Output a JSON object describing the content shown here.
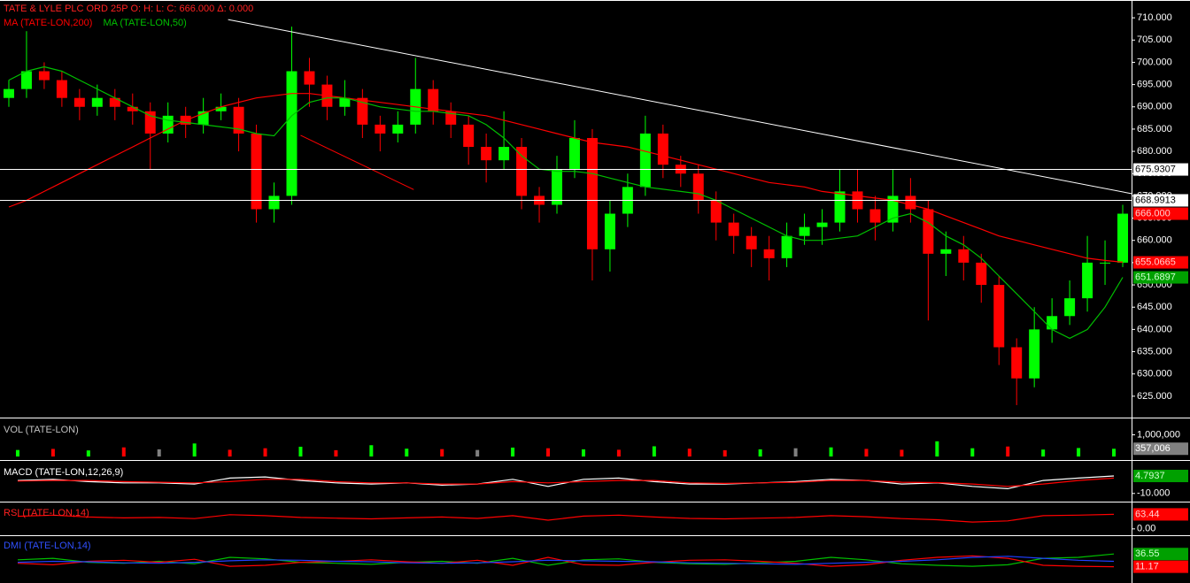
{
  "chart_data": [
    {
      "type": "candlestick",
      "title": "TATE & LYLE PLC ORD 25P  O:   H:   L:   C: 666.000  Δ: 0.000",
      "title_color": "#ff2020",
      "up_color": "#00ff00",
      "down_color": "#ff0000",
      "open": [
        692,
        694,
        698,
        696,
        692,
        690,
        692,
        690,
        689,
        684,
        688,
        686,
        689,
        690,
        684,
        667,
        670,
        698,
        695,
        690,
        692,
        686,
        684,
        686,
        694,
        689,
        686,
        681,
        678,
        681,
        670,
        668,
        676,
        683,
        658,
        666,
        672,
        684,
        677,
        675,
        669,
        664,
        661,
        658,
        656,
        661,
        663,
        664,
        671,
        667,
        664,
        670,
        667,
        657,
        658,
        655,
        650,
        636,
        629,
        640,
        643,
        647,
        655,
        655
      ],
      "high": [
        696,
        707,
        700,
        698,
        694,
        695,
        694,
        693,
        691,
        691,
        690,
        692,
        693,
        692,
        686,
        673,
        708,
        701,
        697,
        696,
        694,
        688,
        689,
        701,
        696,
        691,
        688,
        684,
        689,
        683,
        672,
        679,
        687,
        685,
        669,
        675,
        688,
        686,
        679,
        677,
        671,
        666,
        663,
        661,
        664,
        666,
        667,
        676,
        676,
        670,
        676,
        674,
        669,
        662,
        661,
        657,
        652,
        638,
        645,
        647,
        651,
        661,
        660,
        668
      ],
      "low": [
        690,
        692,
        694,
        690,
        687,
        688,
        687,
        686,
        676,
        682,
        683,
        684,
        687,
        680,
        664,
        664,
        668,
        690,
        687,
        688,
        683,
        680,
        682,
        684,
        686,
        683,
        677,
        673,
        676,
        667,
        664,
        666,
        674,
        651,
        653,
        663,
        670,
        674,
        672,
        666,
        660,
        657,
        654,
        651,
        654,
        659,
        659,
        662,
        664,
        660,
        662,
        664,
        642,
        652,
        651,
        646,
        632,
        623,
        627,
        637,
        641,
        644,
        650,
        654
      ],
      "close": [
        694,
        698,
        696,
        692,
        690,
        692,
        690,
        689,
        684,
        688,
        686,
        689,
        690,
        684,
        667,
        670,
        698,
        695,
        690,
        692,
        686,
        684,
        686,
        694,
        689,
        686,
        681,
        678,
        681,
        670,
        668,
        676,
        683,
        658,
        666,
        672,
        684,
        677,
        675,
        669,
        664,
        661,
        658,
        656,
        661,
        663,
        664,
        671,
        667,
        664,
        670,
        667,
        657,
        658,
        655,
        650,
        636,
        629,
        640,
        643,
        647,
        655,
        655,
        666
      ],
      "series": [
        {
          "name": "MA (TATE-LON,200)",
          "color": "#ff0000",
          "values": [
            667.5,
            669,
            671,
            673,
            675,
            677,
            679,
            681,
            683,
            685,
            687,
            688.5,
            690,
            691,
            692,
            692.5,
            693,
            693,
            692.5,
            692,
            691.5,
            691,
            690.5,
            690,
            689.5,
            689,
            688.5,
            688,
            687,
            686,
            685,
            684,
            683,
            682,
            681.5,
            681,
            680,
            679,
            678,
            677,
            676,
            675,
            674,
            673,
            672.5,
            672,
            671,
            670.5,
            670,
            669.5,
            669,
            668,
            667,
            665.5,
            664,
            662.5,
            661,
            660,
            659,
            658,
            657,
            656,
            655.5,
            655.1
          ]
        },
        {
          "name": "MA (TATE-LON,50)",
          "color": "#00c000",
          "values": [
            696,
            698,
            699,
            698,
            696,
            694,
            692,
            690,
            688,
            687,
            686.5,
            686,
            685.5,
            685,
            684,
            683.5,
            688,
            691,
            692,
            692,
            691,
            690,
            689.5,
            689,
            689,
            688.5,
            688,
            686,
            683,
            679,
            676,
            675.5,
            675.5,
            675,
            674,
            673,
            672,
            671.5,
            671,
            670.5,
            669,
            667,
            665,
            663,
            661,
            660,
            660,
            660.5,
            661,
            663,
            665,
            666,
            664,
            661,
            659,
            656,
            652,
            648,
            644,
            640,
            638,
            640,
            645,
            651.7
          ]
        }
      ],
      "ylim": [
        620.6,
        713.6
      ],
      "yticks": [
        {
          "value": 710,
          "label": "710.000"
        },
        {
          "value": 705,
          "label": "705.000"
        },
        {
          "value": 700,
          "label": "700.000"
        },
        {
          "value": 695,
          "label": "695.000"
        },
        {
          "value": 690,
          "label": "690.000"
        },
        {
          "value": 685,
          "label": "685.000"
        },
        {
          "value": 680,
          "label": "680.000"
        },
        {
          "value": 675,
          "label": "675.000"
        },
        {
          "value": 670,
          "label": "670.000"
        },
        {
          "value": 665,
          "label": "665.000"
        },
        {
          "value": 660,
          "label": "660.000"
        },
        {
          "value": 655,
          "label": "655.000"
        },
        {
          "value": 650,
          "label": "650.000"
        },
        {
          "value": 645,
          "label": "645.000"
        },
        {
          "value": 640,
          "label": "640.000"
        },
        {
          "value": 635,
          "label": "635.000"
        },
        {
          "value": 630,
          "label": "630.000"
        },
        {
          "value": 625,
          "label": "625.000"
        }
      ],
      "last_labels": [
        {
          "value": 675.9307,
          "label": "675.9307",
          "color": "#ffffff",
          "text_color": "#000000",
          "hline": true
        },
        {
          "value": 668.9913,
          "label": "668.9913",
          "color": "#ffffff",
          "text_color": "#000000",
          "hline": true
        },
        {
          "value": 666,
          "label": "666.000",
          "color": "#ff0000",
          "text_color": "#ffd0d0",
          "hline": false
        },
        {
          "value": 655.0665,
          "label": "655.0665",
          "color": "#ff0000",
          "text_color": "#ffd0d0",
          "hline": false
        },
        {
          "value": 651.6897,
          "label": "651.6897",
          "color": "#00a000",
          "text_color": "#d0ffd0",
          "hline": false
        }
      ],
      "trendlines": [
        {
          "color": "#ffffff",
          "x": [
            12.4,
            63.5
          ],
          "y": [
            709.6,
            670.5
          ]
        },
        {
          "color": "#ff0000",
          "x": [
            16.5,
            22.9
          ],
          "y": [
            683.6,
            671.4
          ]
        }
      ]
    },
    {
      "type": "bar",
      "title": "VOL (TATE-LON)",
      "title_color": "#c0c0c0",
      "values": [
        300000,
        350000,
        280000,
        420000,
        330000,
        600000,
        310000,
        380000,
        450000,
        290000,
        520000,
        360000,
        340000,
        300000,
        410000,
        380000,
        330000,
        310000,
        470000,
        360000,
        290000,
        330000,
        380000,
        420000,
        350000,
        310000,
        700000,
        380000,
        460000,
        320000,
        390000,
        357006
      ],
      "colors": [
        "#00ff00",
        "#ff0000",
        "#00ff00",
        "#ff0000",
        "#808080",
        "#00ff00",
        "#ff0000",
        "#ff0000",
        "#00ff00",
        "#ff0000",
        "#00ff00",
        "#00ff00",
        "#ff0000",
        "#808080",
        "#00ff00",
        "#ff0000",
        "#00ff00",
        "#ff0000",
        "#00ff00",
        "#ff0000",
        "#ff0000",
        "#00ff00",
        "#808080",
        "#00ff00",
        "#ff0000",
        "#ff0000",
        "#00ff00",
        "#00ff00",
        "#ff0000",
        "#00ff00",
        "#00ff00",
        "#00ff00"
      ],
      "ylim": [
        0,
        1550000
      ],
      "yticks": [
        {
          "value": 1000000,
          "label": "1,000,000"
        }
      ],
      "last_labels": [
        {
          "value": 357006,
          "label": "357,006",
          "color": "#808080",
          "text_color": "#ffffff",
          "hline": false
        }
      ]
    },
    {
      "type": "line",
      "title": "MACD (TATE-LON,12,26,9)",
      "title_color": "#ffffff",
      "series": [
        {
          "color": "#ffffff",
          "values": [
            1,
            2,
            0,
            -1,
            -1,
            -2,
            3,
            4,
            1,
            -1,
            -2,
            -1,
            -3,
            -2,
            2,
            -4,
            2,
            3,
            0,
            -2,
            -2,
            -1,
            0,
            2,
            1,
            -2,
            -1,
            -4,
            -6,
            1,
            3,
            4.7937
          ]
        },
        {
          "color": "#ff0000",
          "values": [
            0.5,
            1,
            1,
            0,
            -0.5,
            -1,
            0,
            2,
            2,
            0,
            -1,
            -1,
            -2,
            -2,
            0,
            -1,
            0,
            1,
            1,
            -1,
            -1.5,
            -1,
            -0.5,
            1,
            1,
            -0.5,
            -0.8,
            -2,
            -4,
            -2,
            1,
            3
          ]
        }
      ],
      "ylim": [
        -15.4,
        13.8
      ],
      "yticks": [
        {
          "value": -10,
          "label": "-10.000"
        }
      ],
      "last_labels": [
        {
          "value": 4.7937,
          "label": "4.7937",
          "color": "#00a000",
          "text_color": "#d0ffd0",
          "hline": false
        }
      ]
    },
    {
      "type": "line",
      "title": "RSI (TATE-LON,14)",
      "title_color": "#ff2020",
      "series": [
        {
          "color": "#ff0000",
          "values": [
            55,
            60,
            52,
            48,
            50,
            45,
            62,
            58,
            50,
            47,
            44,
            48,
            52,
            46,
            58,
            38,
            56,
            60,
            52,
            46,
            44,
            47,
            50,
            58,
            53,
            45,
            40,
            30,
            35,
            58,
            60,
            63.44
          ]
        }
      ],
      "ylim": [
        -20,
        100
      ],
      "yticks": [
        {
          "value": 0,
          "label": "0.00"
        }
      ],
      "last_labels": [
        {
          "value": 63.44,
          "label": "63.44",
          "color": "#ff0000",
          "text_color": "#ffd0d0",
          "hline": false
        }
      ]
    },
    {
      "type": "line",
      "title": "DMI (TATE-LON,14)",
      "title_color": "#3050ff",
      "series": [
        {
          "color": "#00c000",
          "values": [
            25,
            28,
            20,
            18,
            22,
            17,
            30,
            27,
            20,
            18,
            16,
            20,
            22,
            18,
            28,
            14,
            25,
            27,
            20,
            17,
            16,
            19,
            22,
            30,
            25,
            17,
            14,
            12,
            15,
            28,
            30,
            36.55
          ]
        },
        {
          "color": "#ff0000",
          "values": [
            18,
            15,
            22,
            24,
            20,
            26,
            12,
            14,
            20,
            22,
            25,
            21,
            18,
            24,
            14,
            30,
            15,
            14,
            20,
            24,
            25,
            22,
            18,
            12,
            15,
            24,
            30,
            33,
            28,
            14,
            12,
            11.17
          ]
        },
        {
          "color": "#2040ff",
          "values": [
            20,
            22,
            21,
            19,
            18,
            20,
            23,
            25,
            24,
            22,
            21,
            19,
            18,
            19,
            21,
            24,
            23,
            22,
            21,
            19,
            18,
            17,
            16,
            18,
            20,
            22,
            25,
            30,
            32,
            28,
            24,
            22
          ]
        }
      ],
      "ylim": [
        -16,
        67
      ],
      "last_labels": [
        {
          "value": 36.55,
          "label": "36.55",
          "color": "#00a000",
          "text_color": "#d0ffd0",
          "hline": false
        },
        {
          "value": 11.17,
          "label": "11.17",
          "color": "#ff0000",
          "text_color": "#ffd0d0",
          "hline": false
        }
      ]
    }
  ]
}
